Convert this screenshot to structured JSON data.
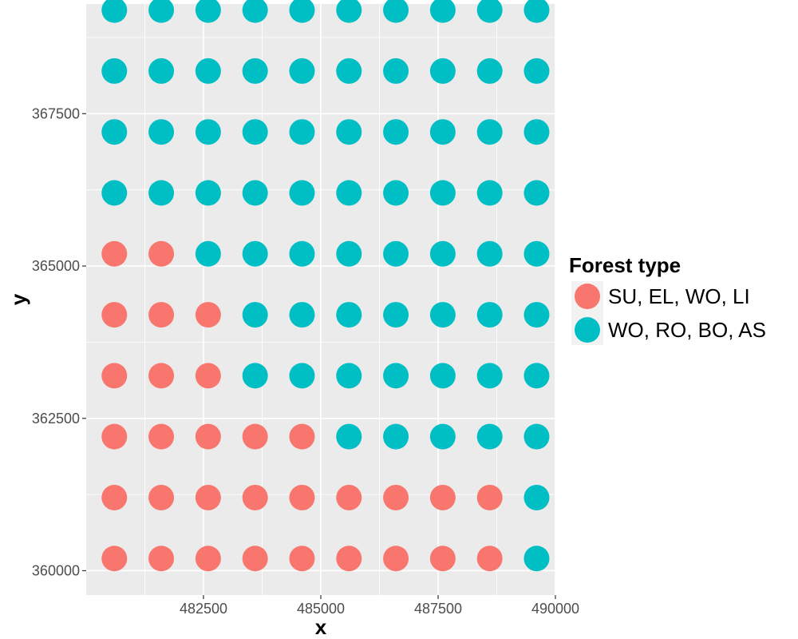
{
  "chart_data": {
    "type": "scatter",
    "title": "",
    "xlabel": "x",
    "ylabel": "y",
    "xlim": [
      480000,
      490000
    ],
    "ylim": [
      359600,
      369300
    ],
    "x_ticks": [
      482500,
      485000,
      487500,
      490000
    ],
    "y_ticks": [
      360000,
      362500,
      365000,
      367500
    ],
    "x_tick_labels": [
      "482500",
      "485000",
      "487500",
      "490000"
    ],
    "y_tick_labels": [
      "360000",
      "362500",
      "365000",
      "367500"
    ],
    "grid": true,
    "legend_position": "right",
    "legend_title": "Forest type",
    "colors": {
      "panel_background": "#ebebeb",
      "grid": "#ffffff",
      "SU, EL, WO, LI": "#f8766d",
      "WO, RO, BO, AS": "#00bfc4"
    },
    "series": [
      {
        "name": "SU, EL, WO, LI",
        "color": "#f8766d",
        "points": [
          [
            480600,
            360200
          ],
          [
            481600,
            360200
          ],
          [
            482600,
            360200
          ],
          [
            483600,
            360200
          ],
          [
            484600,
            360200
          ],
          [
            485600,
            360200
          ],
          [
            486600,
            360200
          ],
          [
            487600,
            360200
          ],
          [
            488600,
            360200
          ],
          [
            480600,
            361200
          ],
          [
            481600,
            361200
          ],
          [
            482600,
            361200
          ],
          [
            483600,
            361200
          ],
          [
            484600,
            361200
          ],
          [
            485600,
            361200
          ],
          [
            486600,
            361200
          ],
          [
            487600,
            361200
          ],
          [
            488600,
            361200
          ],
          [
            480600,
            362200
          ],
          [
            481600,
            362200
          ],
          [
            482600,
            362200
          ],
          [
            483600,
            362200
          ],
          [
            484600,
            362200
          ],
          [
            480600,
            363200
          ],
          [
            481600,
            363200
          ],
          [
            482600,
            363200
          ],
          [
            480600,
            364200
          ],
          [
            481600,
            364200
          ],
          [
            482600,
            364200
          ],
          [
            480600,
            365200
          ],
          [
            481600,
            365200
          ]
        ]
      },
      {
        "name": "WO, RO, BO, AS",
        "color": "#00bfc4",
        "points": [
          [
            489600,
            360200
          ],
          [
            489600,
            361200
          ],
          [
            485600,
            362200
          ],
          [
            486600,
            362200
          ],
          [
            487600,
            362200
          ],
          [
            488600,
            362200
          ],
          [
            489600,
            362200
          ],
          [
            483600,
            363200
          ],
          [
            484600,
            363200
          ],
          [
            485600,
            363200
          ],
          [
            486600,
            363200
          ],
          [
            487600,
            363200
          ],
          [
            488600,
            363200
          ],
          [
            489600,
            363200
          ],
          [
            483600,
            364200
          ],
          [
            484600,
            364200
          ],
          [
            485600,
            364200
          ],
          [
            486600,
            364200
          ],
          [
            487600,
            364200
          ],
          [
            488600,
            364200
          ],
          [
            489600,
            364200
          ],
          [
            482600,
            365200
          ],
          [
            483600,
            365200
          ],
          [
            484600,
            365200
          ],
          [
            485600,
            365200
          ],
          [
            486600,
            365200
          ],
          [
            487600,
            365200
          ],
          [
            488600,
            365200
          ],
          [
            489600,
            365200
          ],
          [
            480600,
            366200
          ],
          [
            481600,
            366200
          ],
          [
            482600,
            366200
          ],
          [
            483600,
            366200
          ],
          [
            484600,
            366200
          ],
          [
            485600,
            366200
          ],
          [
            486600,
            366200
          ],
          [
            487600,
            366200
          ],
          [
            488600,
            366200
          ],
          [
            489600,
            366200
          ],
          [
            480600,
            367200
          ],
          [
            481600,
            367200
          ],
          [
            482600,
            367200
          ],
          [
            483600,
            367200
          ],
          [
            484600,
            367200
          ],
          [
            485600,
            367200
          ],
          [
            486600,
            367200
          ],
          [
            487600,
            367200
          ],
          [
            488600,
            367200
          ],
          [
            489600,
            367200
          ],
          [
            480600,
            368200
          ],
          [
            481600,
            368200
          ],
          [
            482600,
            368200
          ],
          [
            483600,
            368200
          ],
          [
            484600,
            368200
          ],
          [
            485600,
            368200
          ],
          [
            486600,
            368200
          ],
          [
            487600,
            368200
          ],
          [
            488600,
            368200
          ],
          [
            489600,
            368200
          ],
          [
            480600,
            369200
          ],
          [
            481600,
            369200
          ],
          [
            482600,
            369200
          ],
          [
            483600,
            369200
          ],
          [
            484600,
            369200
          ],
          [
            485600,
            369200
          ],
          [
            486600,
            369200
          ],
          [
            487600,
            369200
          ],
          [
            488600,
            369200
          ],
          [
            489600,
            369200
          ]
        ]
      }
    ]
  }
}
